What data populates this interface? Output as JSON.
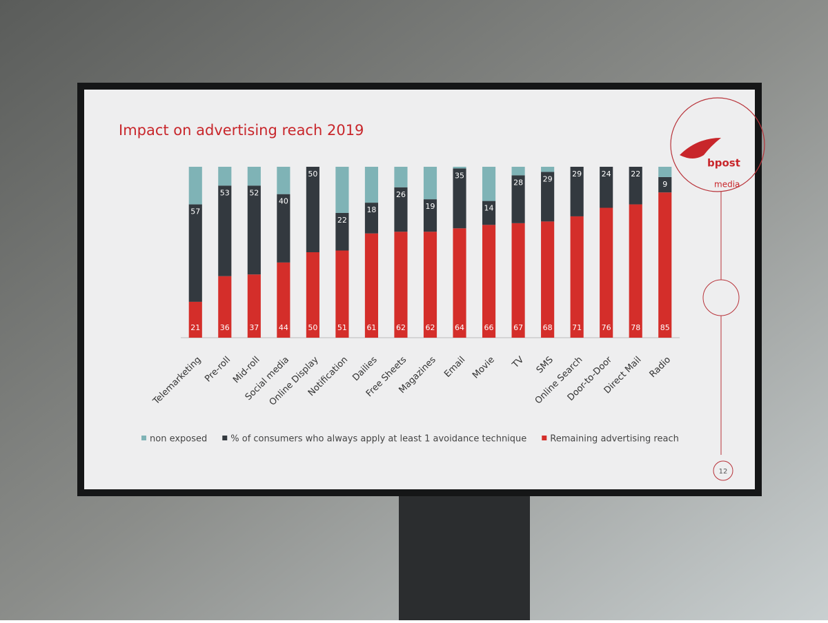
{
  "chart_data": {
    "type": "stacked_bar",
    "title": "Impact on advertising reach 2019",
    "categories": [
      "Telemarketing",
      "Pre-roll",
      "Mid-roll",
      "Social media",
      "Online Display",
      "Notification",
      "Dailies",
      "Free Sheets",
      "Magazines",
      "Email",
      "Movie",
      "TV",
      "SMS",
      "Online Search",
      "Door-to-Door",
      "Direct Mail",
      "Radio"
    ],
    "series": [
      {
        "name": "Remaining advertising reach",
        "color": "#d42e2a",
        "labels": true,
        "values": [
          21,
          36,
          37,
          44,
          50,
          51,
          61,
          62,
          62,
          64,
          66,
          67,
          68,
          71,
          76,
          78,
          85
        ]
      },
      {
        "name": "% of consumers who always apply at least 1 avoidance technique",
        "color": "#33393f",
        "labels": true,
        "values": [
          57,
          53,
          52,
          40,
          50,
          22,
          18,
          26,
          19,
          35,
          14,
          28,
          29,
          29,
          24,
          22,
          9
        ]
      },
      {
        "name": "non exposed",
        "color": "#7fb3b6",
        "labels": false,
        "values": [
          22,
          11,
          11,
          16,
          0,
          27,
          21,
          12,
          19,
          1,
          20,
          5,
          3,
          0,
          0,
          0,
          6
        ]
      }
    ],
    "legend_order": [
      2,
      1,
      0
    ],
    "ylim": [
      0,
      100
    ]
  },
  "logo": {
    "brand": "bpost",
    "sub": "media"
  },
  "page_number": 12
}
